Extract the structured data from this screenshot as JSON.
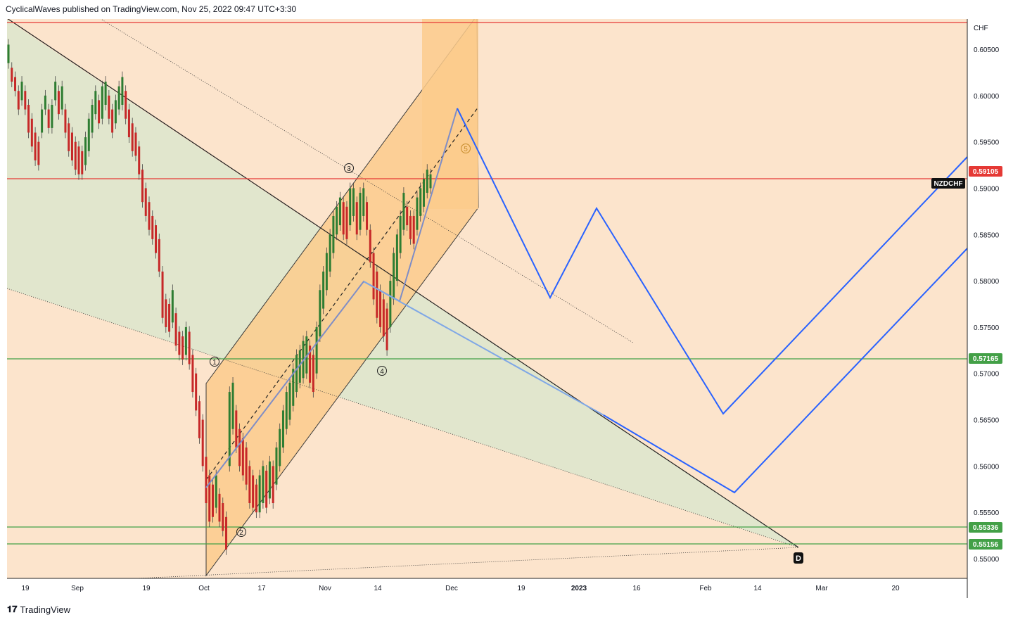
{
  "header": {
    "publisher": "CyclicalWaves published on TradingView.com, Nov 25, 2022 09:47 UTC+3:30"
  },
  "footer": {
    "logo_text": "TradingView",
    "logo_glyph": "𝟏𝟕"
  },
  "colors": {
    "background": "#fce4cc",
    "green_zone": "#dfe6cc",
    "channel": "#fbcb8c",
    "red_line": "#e53935",
    "green_line": "#43a047",
    "projection": "#2962ff",
    "light_blue": "#7fa7e6",
    "wave_path": "#7f8dc6"
  },
  "chart_data": {
    "type": "candlestick",
    "symbol": "NZDCHF",
    "currency": "CHF",
    "ylim": [
      0.5477,
      0.6075
    ],
    "y_ticks": [
      "0.60500",
      "0.60000",
      "0.59500",
      "0.59000",
      "0.58500",
      "0.58000",
      "0.57500",
      "0.57000",
      "0.56500",
      "0.56000",
      "0.55500",
      "0.55000"
    ],
    "x_ticks": [
      "19",
      "Sep",
      "19",
      "Oct",
      "17",
      "Nov",
      "14",
      "Dec",
      "19",
      "2023",
      "16",
      "Feb",
      "14",
      "Mar",
      "20"
    ],
    "price_lines": [
      {
        "label": "0.59105",
        "value": 0.59105,
        "color": "#e53935"
      },
      {
        "label": "0.57165",
        "value": 0.57165,
        "color": "#43a047"
      },
      {
        "label": "0.55336",
        "value": 0.55336,
        "color": "#43a047"
      },
      {
        "label": "0.55156",
        "value": 0.55156,
        "color": "#43a047"
      }
    ],
    "top_line_value": 0.6081,
    "symbol_tag": "NZDCHF",
    "wave_labels": [
      "1",
      "2",
      "3",
      "4",
      "5"
    ],
    "point_label": "D",
    "price_path": [
      [
        0.6035,
        0.6055
      ],
      [
        0.6015,
        0.603
      ],
      [
        0.6005,
        0.602
      ],
      [
        0.5985,
        0.6005
      ],
      [
        0.5995,
        0.6015
      ],
      [
        0.5985,
        0.6005
      ],
      [
        0.596,
        0.599
      ],
      [
        0.5945,
        0.5975
      ],
      [
        0.593,
        0.596
      ],
      [
        0.5925,
        0.595
      ],
      [
        0.596,
        0.5985
      ],
      [
        0.5985,
        0.6
      ],
      [
        0.5965,
        0.5985
      ],
      [
        0.5965,
        0.599
      ],
      [
        0.5995,
        0.6015
      ],
      [
        0.598,
        0.6005
      ],
      [
        0.5985,
        0.601
      ],
      [
        0.596,
        0.5985
      ],
      [
        0.594,
        0.597
      ],
      [
        0.593,
        0.596
      ],
      [
        0.592,
        0.595
      ],
      [
        0.5915,
        0.5945
      ],
      [
        0.5915,
        0.594
      ],
      [
        0.5925,
        0.5955
      ],
      [
        0.594,
        0.5975
      ],
      [
        0.596,
        0.599
      ],
      [
        0.598,
        0.6005
      ],
      [
        0.597,
        0.5995
      ],
      [
        0.5975,
        0.601
      ],
      [
        0.599,
        0.6015
      ],
      [
        0.5975,
        0.6
      ],
      [
        0.596,
        0.5985
      ],
      [
        0.597,
        0.5995
      ],
      [
        0.5985,
        0.601
      ],
      [
        0.599,
        0.602
      ],
      [
        0.5975,
        0.6005
      ],
      [
        0.5955,
        0.5985
      ],
      [
        0.594,
        0.597
      ],
      [
        0.5935,
        0.596
      ],
      [
        0.5915,
        0.5945
      ],
      [
        0.5885,
        0.592
      ],
      [
        0.587,
        0.59
      ],
      [
        0.5855,
        0.5885
      ],
      [
        0.5845,
        0.587
      ],
      [
        0.583,
        0.586
      ],
      [
        0.581,
        0.5845
      ],
      [
        0.576,
        0.581
      ],
      [
        0.575,
        0.578
      ],
      [
        0.5745,
        0.5775
      ],
      [
        0.5755,
        0.579
      ],
      [
        0.573,
        0.5765
      ],
      [
        0.572,
        0.5745
      ],
      [
        0.5715,
        0.574
      ],
      [
        0.572,
        0.575
      ],
      [
        0.571,
        0.5745
      ],
      [
        0.568,
        0.572
      ],
      [
        0.566,
        0.57
      ],
      [
        0.563,
        0.567
      ],
      [
        0.56,
        0.565
      ],
      [
        0.556,
        0.561
      ],
      [
        0.554,
        0.559
      ],
      [
        0.5545,
        0.558
      ],
      [
        0.5555,
        0.559
      ],
      [
        0.554,
        0.557
      ],
      [
        0.553,
        0.556
      ],
      [
        0.551,
        0.5545
      ],
      [
        0.56,
        0.568
      ],
      [
        0.564,
        0.569
      ],
      [
        0.562,
        0.566
      ],
      [
        0.56,
        0.564
      ],
      [
        0.559,
        0.563
      ],
      [
        0.558,
        0.562
      ],
      [
        0.556,
        0.56
      ],
      [
        0.5555,
        0.559
      ],
      [
        0.555,
        0.558
      ],
      [
        0.555,
        0.559
      ],
      [
        0.556,
        0.56
      ],
      [
        0.5555,
        0.5595
      ],
      [
        0.5565,
        0.5605
      ],
      [
        0.556,
        0.56
      ],
      [
        0.558,
        0.562
      ],
      [
        0.56,
        0.564
      ],
      [
        0.562,
        0.566
      ],
      [
        0.564,
        0.568
      ],
      [
        0.565,
        0.569
      ],
      [
        0.5665,
        0.5705
      ],
      [
        0.568,
        0.572
      ],
      [
        0.569,
        0.5725
      ],
      [
        0.5695,
        0.5735
      ],
      [
        0.57,
        0.574
      ],
      [
        0.569,
        0.573
      ],
      [
        0.568,
        0.572
      ],
      [
        0.57,
        0.575
      ],
      [
        0.574,
        0.579
      ],
      [
        0.577,
        0.581
      ],
      [
        0.579,
        0.583
      ],
      [
        0.581,
        0.585
      ],
      [
        0.583,
        0.587
      ],
      [
        0.585,
        0.588
      ],
      [
        0.586,
        0.589
      ],
      [
        0.585,
        0.5885
      ],
      [
        0.5845,
        0.588
      ],
      [
        0.586,
        0.59
      ],
      [
        0.587,
        0.59
      ],
      [
        0.585,
        0.5885
      ],
      [
        0.5855,
        0.5895
      ],
      [
        0.587,
        0.59
      ],
      [
        0.5855,
        0.5885
      ],
      [
        0.582,
        0.5855
      ],
      [
        0.578,
        0.583
      ],
      [
        0.576,
        0.581
      ],
      [
        0.575,
        0.579
      ],
      [
        0.574,
        0.578
      ],
      [
        0.5725,
        0.577
      ],
      [
        0.575,
        0.58
      ],
      [
        0.578,
        0.583
      ],
      [
        0.58,
        0.585
      ],
      [
        0.583,
        0.587
      ],
      [
        0.5855,
        0.5895
      ],
      [
        0.586,
        0.588
      ],
      [
        0.5845,
        0.587
      ],
      [
        0.584,
        0.587
      ],
      [
        0.5855,
        0.589
      ],
      [
        0.587,
        0.59
      ],
      [
        0.588,
        0.591
      ],
      [
        0.5895,
        0.592
      ],
      [
        0.59,
        0.5915
      ]
    ],
    "annotations": "Bullish channel (orange) from the Oct low with Elliott waves 1-5; blue projection path from about 0.5985 down to about 0.5575 (mid-Feb), then rising past 0.5930."
  }
}
